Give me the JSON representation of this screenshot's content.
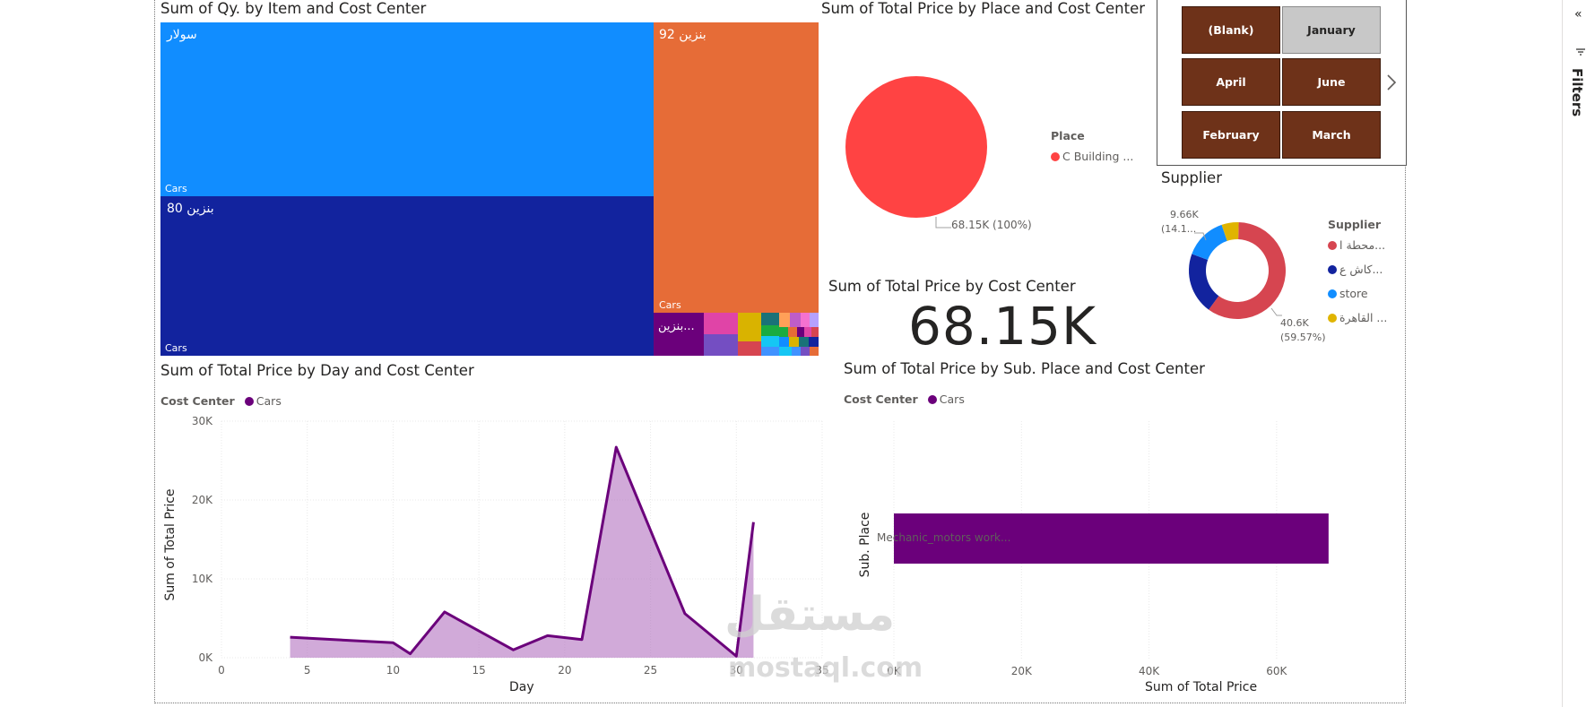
{
  "treemap": {
    "title": "Sum of Qy. by Item and Cost Center",
    "cells": [
      {
        "label": "سولار",
        "sub": "Cars",
        "color": "#118dff"
      },
      {
        "label": "بنزين 80",
        "sub": "Cars",
        "color": "#12239e"
      },
      {
        "label": "بنزين 92",
        "sub": "Cars",
        "color": "#e66c37"
      },
      {
        "label": "بنزين...",
        "sub": "",
        "color": "#6b007b"
      }
    ]
  },
  "pie": {
    "title": "Sum of Total Price by Place and Cost Center",
    "legend_title": "Place",
    "legend_item": "C Building ...",
    "color": "#ff4343",
    "data_label": "68.15K (100%)"
  },
  "slicer": {
    "buttons": [
      "(Blank)",
      "January",
      "April",
      "June",
      "February",
      "March"
    ],
    "selected": "January"
  },
  "donut": {
    "title": "Supplier",
    "legend_title": "Supplier",
    "legend": [
      {
        "label": "محطة ا...",
        "color": "#d64550"
      },
      {
        "label": "كاش ع...",
        "color": "#12239e"
      },
      {
        "label": "store",
        "color": "#118dff"
      },
      {
        "label": "القاهرة ...",
        "color": "#e0b400"
      }
    ],
    "label_top_1": "9.66K",
    "label_top_2": "(14.1...",
    "label_bottom_1": "40.6K",
    "label_bottom_2": "(59.57%)"
  },
  "card": {
    "title": "Sum of Total Price by Cost Center",
    "value": "68.15K"
  },
  "area": {
    "title": "Sum of Total Price by Day and Cost Center",
    "legend_title": "Cost Center",
    "legend_item": "Cars",
    "xlabel": "Day",
    "ylabel": "Sum of Total Price"
  },
  "bar": {
    "title": "Sum of Total Price by Sub. Place and Cost Center",
    "legend_title": "Cost Center",
    "legend_item": "Cars",
    "xlabel": "Sum of Total Price",
    "ylabel": "Sub. Place",
    "category": "Mechanic_motors work..."
  },
  "filters_label": "Filters",
  "watermark": {
    "arabic": "مستقل",
    "latin": "mostaql.com"
  },
  "chart_data": [
    {
      "type": "area",
      "title": "Sum of Total Price by Day and Cost Center",
      "xlabel": "Day",
      "ylabel": "Sum of Total Price",
      "xlim": [
        0,
        35
      ],
      "ylim": [
        0,
        30000
      ],
      "x_ticks": [
        "0",
        "5",
        "10",
        "15",
        "20",
        "25",
        "30",
        "35"
      ],
      "y_ticks": [
        "0K",
        "10K",
        "20K",
        "30K"
      ],
      "series": [
        {
          "name": "Cars",
          "color": "#6b007b",
          "x": [
            4,
            10,
            11,
            13,
            17,
            19,
            21,
            23,
            27,
            30,
            31
          ],
          "y": [
            2600,
            1900,
            500,
            5800,
            1000,
            2800,
            2300,
            26700,
            5600,
            200,
            17200
          ]
        }
      ]
    },
    {
      "type": "bar",
      "orientation": "horizontal",
      "title": "Sum of Total Price by Sub. Place and Cost Center",
      "xlabel": "Sum of Total Price",
      "ylabel": "Sub. Place",
      "xlim": [
        0,
        70000
      ],
      "x_ticks": [
        "0K",
        "20K",
        "40K",
        "60K"
      ],
      "categories": [
        "Mechanic_motors work..."
      ],
      "series": [
        {
          "name": "Cars",
          "color": "#6b007b",
          "values": [
            68150
          ]
        }
      ]
    },
    {
      "type": "pie",
      "title": "Supplier",
      "style": "donut",
      "slices": [
        {
          "label": "محطة ا...",
          "value": 40600,
          "percent": 59.57,
          "color": "#d64550"
        },
        {
          "label": "كاش ع...",
          "value": 14000,
          "color": "#12239e"
        },
        {
          "label": "store",
          "value": 9660,
          "color": "#118dff"
        },
        {
          "label": "القاهرة ...",
          "value": 3890,
          "color": "#e0b400"
        }
      ]
    },
    {
      "type": "pie",
      "title": "Sum of Total Price by Place and Cost Center",
      "slices": [
        {
          "label": "C Building ...",
          "value": 68150,
          "percent": 100,
          "color": "#ff4343"
        }
      ]
    }
  ]
}
